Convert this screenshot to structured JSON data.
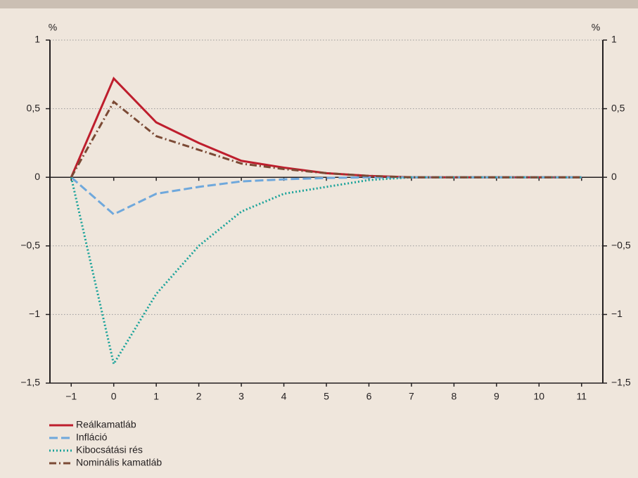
{
  "chart_data": {
    "type": "line",
    "ylabel": "%",
    "y2label": "%",
    "x": [
      -1,
      0,
      1,
      2,
      3,
      4,
      5,
      6,
      7,
      8,
      9,
      10,
      11
    ],
    "xlim": [
      -1.5,
      11.5
    ],
    "xticks": [
      {
        "value": -1,
        "label": "−1"
      },
      0,
      1,
      2,
      3,
      4,
      5,
      6,
      7,
      8,
      9,
      10,
      11
    ],
    "ylim": [
      -1.5,
      1
    ],
    "yticks": [
      {
        "value": -1.5,
        "label": "−1,5"
      },
      {
        "value": -1,
        "label": "−1"
      },
      {
        "value": -0.5,
        "label": "−0,5"
      },
      0,
      {
        "value": 0.5,
        "label": "0,5"
      },
      1
    ],
    "y2lim": [
      -1.5,
      1
    ],
    "y2ticks": [
      {
        "value": -1.5,
        "label": "−1,5"
      },
      {
        "value": -1,
        "label": "−1"
      },
      {
        "value": -0.5,
        "label": "−0,5"
      },
      0,
      {
        "value": 0.5,
        "label": "0,5"
      },
      1
    ],
    "grid": true,
    "legend": "bottom-left",
    "series": [
      {
        "name": "Reálkamatláb",
        "color": "#be1e2d",
        "dash": "solid",
        "values": [
          0,
          0.72,
          0.4,
          0.25,
          0.12,
          0.07,
          0.03,
          0.01,
          0,
          0,
          0,
          0,
          0
        ]
      },
      {
        "name": "Infláció",
        "color": "#6fa8dc",
        "dash": "dashed",
        "values": [
          0,
          -0.27,
          -0.12,
          -0.07,
          -0.03,
          -0.015,
          -0.005,
          0,
          0,
          0,
          0,
          0,
          0
        ]
      },
      {
        "name": "Kibocsátási rés",
        "color": "#1aa39a",
        "dash": "dotted",
        "values": [
          0,
          -1.36,
          -0.85,
          -0.5,
          -0.25,
          -0.12,
          -0.07,
          -0.02,
          0,
          0,
          0,
          0,
          0
        ]
      },
      {
        "name": "Nominális kamatláb",
        "color": "#7b4a35",
        "dash": "dashdot",
        "values": [
          0,
          0.55,
          0.3,
          0.2,
          0.1,
          0.06,
          0.03,
          0.01,
          0,
          0,
          0,
          0,
          0
        ]
      }
    ]
  }
}
